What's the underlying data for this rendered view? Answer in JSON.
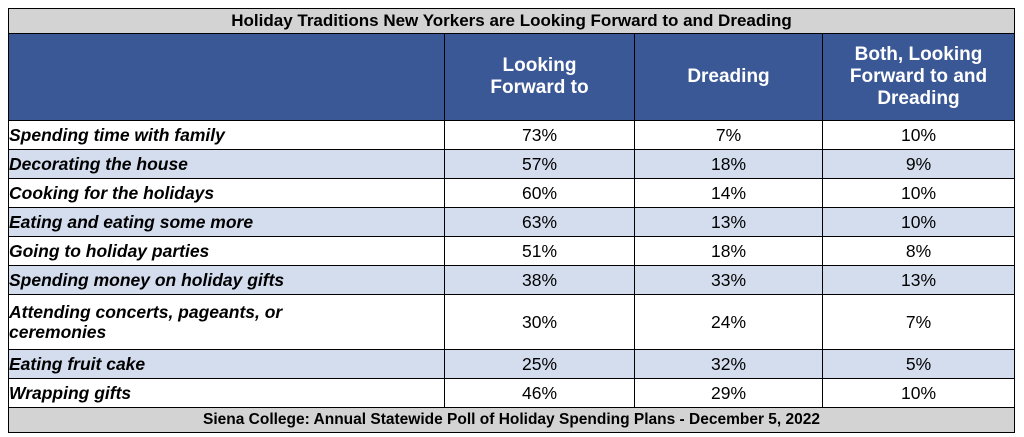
{
  "chart_data": {
    "type": "table",
    "title": "Holiday Traditions New Yorkers are Looking Forward to and Dreading",
    "columns": [
      "",
      "Looking Forward to",
      "Dreading",
      "Both, Looking Forward to and Dreading"
    ],
    "rows": [
      {
        "label": "Spending time with family",
        "values": [
          "73%",
          "7%",
          "10%"
        ]
      },
      {
        "label": "Decorating the house",
        "values": [
          "57%",
          "18%",
          "9%"
        ]
      },
      {
        "label": "Cooking for the holidays",
        "values": [
          "60%",
          "14%",
          "10%"
        ]
      },
      {
        "label": "Eating and eating some more",
        "values": [
          "63%",
          "13%",
          "10%"
        ]
      },
      {
        "label": "Going to holiday parties",
        "values": [
          "51%",
          "18%",
          "8%"
        ]
      },
      {
        "label": "Spending money on holiday gifts",
        "values": [
          "38%",
          "33%",
          "13%"
        ]
      },
      {
        "label": "Attending concerts, pageants, or ceremonies",
        "values": [
          "30%",
          "24%",
          "7%"
        ]
      },
      {
        "label": "Eating fruit cake",
        "values": [
          "25%",
          "32%",
          "5%"
        ]
      },
      {
        "label": "Wrapping gifts",
        "values": [
          "46%",
          "29%",
          "10%"
        ]
      }
    ],
    "footer": "Siena College:  Annual Statewide Poll of Holiday Spending Plans - December 5, 2022"
  },
  "colors": {
    "header_bg": "#3b5896",
    "header_text": "#ffffff",
    "alt_row_bg": "#d4ddee",
    "title_bg": "#d3d3d3"
  }
}
